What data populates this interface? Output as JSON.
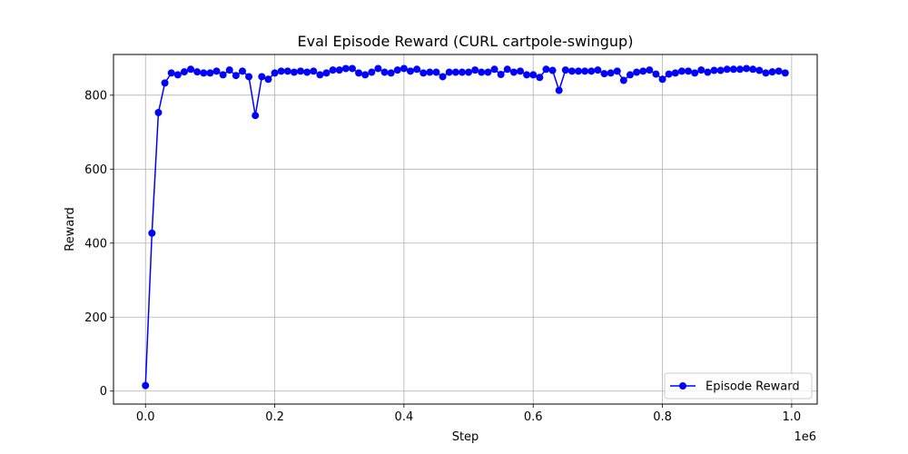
{
  "chart_data": {
    "type": "line",
    "title": "Eval Episode Reward (CURL cartpole-swingup)",
    "xlabel": "Step",
    "ylabel": "Reward",
    "x_offset_text": "1e6",
    "xlim": [
      -0.0495,
      1.0395
    ],
    "ylim": [
      -35,
      910
    ],
    "xticks": [
      0.0,
      0.2,
      0.4,
      0.6,
      0.8,
      1.0
    ],
    "xtick_labels": [
      "0.0",
      "0.2",
      "0.4",
      "0.6",
      "0.8",
      "1.0"
    ],
    "yticks": [
      0,
      200,
      400,
      600,
      800
    ],
    "ytick_labels": [
      "0",
      "200",
      "400",
      "600",
      "800"
    ],
    "grid": true,
    "legend_position": "lower right",
    "series": [
      {
        "name": "Episode Reward",
        "color": "#0000ff",
        "marker": "circle",
        "x": [
          0.0,
          0.01,
          0.02,
          0.03,
          0.04,
          0.05,
          0.06,
          0.07,
          0.08,
          0.09,
          0.1,
          0.11,
          0.12,
          0.13,
          0.14,
          0.15,
          0.16,
          0.17,
          0.18,
          0.19,
          0.2,
          0.21,
          0.22,
          0.23,
          0.24,
          0.25,
          0.26,
          0.27,
          0.28,
          0.29,
          0.3,
          0.31,
          0.32,
          0.33,
          0.34,
          0.35,
          0.36,
          0.37,
          0.38,
          0.39,
          0.4,
          0.41,
          0.42,
          0.43,
          0.44,
          0.45,
          0.46,
          0.47,
          0.48,
          0.49,
          0.5,
          0.51,
          0.52,
          0.53,
          0.54,
          0.55,
          0.56,
          0.57,
          0.58,
          0.59,
          0.6,
          0.61,
          0.62,
          0.63,
          0.64,
          0.65,
          0.66,
          0.67,
          0.68,
          0.69,
          0.7,
          0.71,
          0.72,
          0.73,
          0.74,
          0.75,
          0.76,
          0.77,
          0.78,
          0.79,
          0.8,
          0.81,
          0.82,
          0.83,
          0.84,
          0.85,
          0.86,
          0.87,
          0.88,
          0.89,
          0.9,
          0.91,
          0.92,
          0.93,
          0.94,
          0.95,
          0.96,
          0.97,
          0.98,
          0.99
        ],
        "values": [
          15,
          427,
          753,
          833,
          860,
          855,
          863,
          870,
          863,
          860,
          860,
          865,
          855,
          868,
          853,
          865,
          850,
          745,
          850,
          843,
          860,
          865,
          865,
          862,
          865,
          862,
          865,
          855,
          860,
          868,
          868,
          872,
          872,
          860,
          855,
          862,
          872,
          862,
          860,
          868,
          872,
          865,
          870,
          860,
          862,
          862,
          850,
          862,
          862,
          862,
          862,
          868,
          862,
          862,
          870,
          856,
          870,
          862,
          865,
          855,
          855,
          848,
          870,
          867,
          813,
          868,
          865,
          865,
          865,
          865,
          868,
          858,
          860,
          865,
          840,
          855,
          862,
          865,
          868,
          857,
          843,
          857,
          860,
          865,
          865,
          860,
          868,
          862,
          867,
          867,
          870,
          870,
          870,
          872,
          870,
          867,
          860,
          863,
          865,
          860
        ]
      }
    ]
  }
}
